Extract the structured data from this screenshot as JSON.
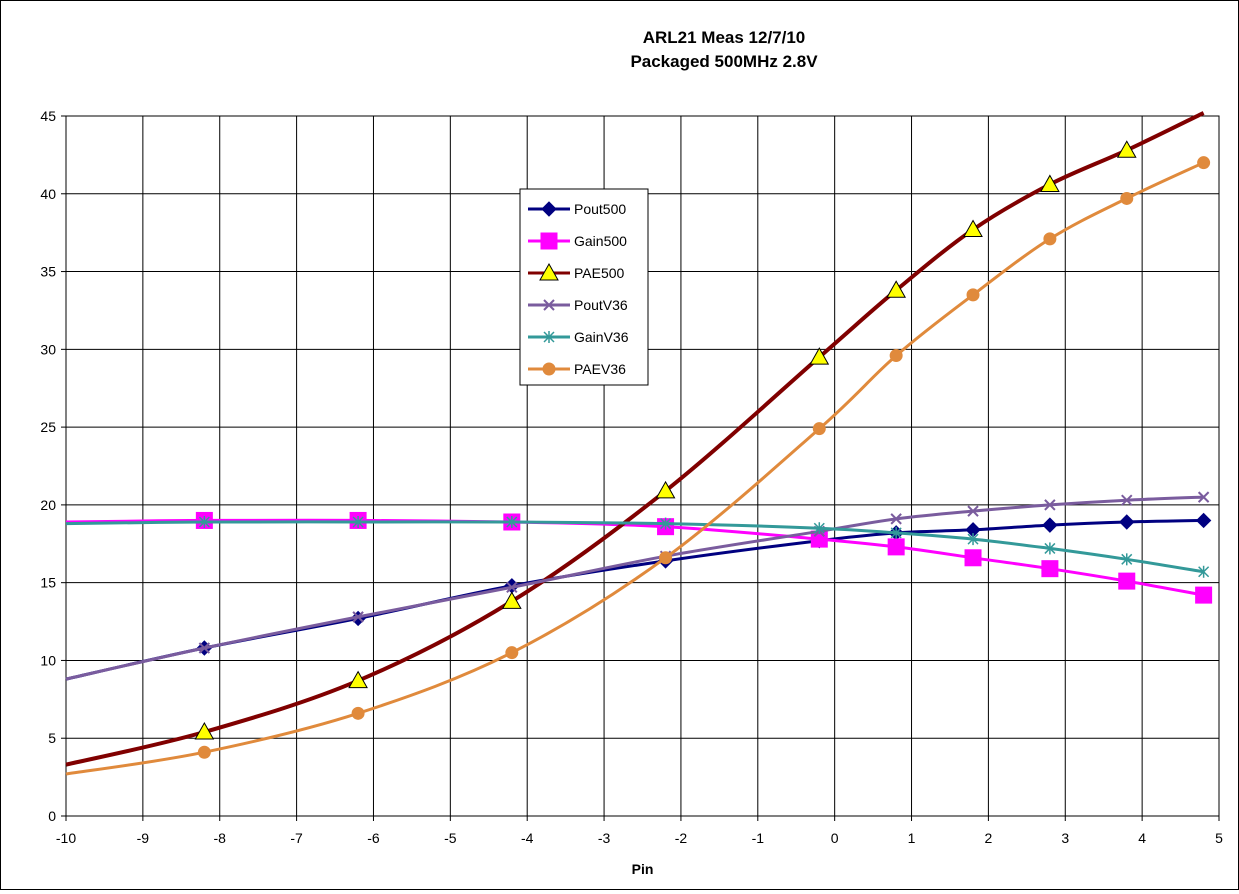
{
  "chart_data": {
    "type": "line",
    "title": "ARL21 Meas 12/7/10",
    "subtitle": "Packaged 500MHz 2.8V",
    "xlabel": "Pin",
    "ylabel": "",
    "xlim": [
      -10,
      5
    ],
    "ylim": [
      0,
      45
    ],
    "x_ticks": [
      "-10",
      "-9",
      "-8",
      "-7",
      "-6",
      "-5",
      "-4",
      "-3",
      "-2",
      "-1",
      "0",
      "1",
      "2",
      "3",
      "4",
      "5"
    ],
    "y_ticks": [
      "0",
      "5",
      "10",
      "15",
      "20",
      "25",
      "30",
      "35",
      "40",
      "45"
    ],
    "grid": true,
    "legend_position": "upper-center",
    "series": [
      {
        "name": "Pout500",
        "color": "#000080",
        "marker": "diamond",
        "x": [
          -10,
          -8.2,
          -6.2,
          -4.2,
          -2.2,
          -0.2,
          0.8,
          1.8,
          2.8,
          3.8,
          4.8
        ],
        "y": [
          8.8,
          10.8,
          12.7,
          14.8,
          16.4,
          17.7,
          18.2,
          18.4,
          18.7,
          18.9,
          19.0
        ]
      },
      {
        "name": "Gain500",
        "color": "#FF00FF",
        "marker": "square",
        "x": [
          -10,
          -8.2,
          -6.2,
          -4.2,
          -2.2,
          -0.2,
          0.8,
          1.8,
          2.8,
          3.8,
          4.8
        ],
        "y": [
          18.9,
          19.0,
          19.0,
          18.9,
          18.6,
          17.8,
          17.3,
          16.6,
          15.9,
          15.1,
          14.2
        ]
      },
      {
        "name": "PAE500",
        "color": "#800000",
        "marker": "triangle",
        "marker_fill": "#FFFF00",
        "x": [
          -10,
          -8.2,
          -6.2,
          -4.2,
          -2.2,
          -0.2,
          0.8,
          1.8,
          2.8,
          3.8,
          4.8
        ],
        "y": [
          3.3,
          5.4,
          8.7,
          13.8,
          20.9,
          29.5,
          33.8,
          37.7,
          40.6,
          42.8,
          45.2
        ]
      },
      {
        "name": "PoutV36",
        "color": "#7A5C9E",
        "marker": "x",
        "x": [
          -10,
          -8.2,
          -6.2,
          -4.2,
          -2.2,
          -0.2,
          0.8,
          1.8,
          2.8,
          3.8,
          4.8
        ],
        "y": [
          8.8,
          10.8,
          12.8,
          14.7,
          16.7,
          18.3,
          19.1,
          19.6,
          20.0,
          20.3,
          20.5
        ]
      },
      {
        "name": "GainV36",
        "color": "#339999",
        "marker": "asterisk",
        "x": [
          -10,
          -8.2,
          -6.2,
          -4.2,
          -2.2,
          -0.2,
          0.8,
          1.8,
          2.8,
          3.8,
          4.8
        ],
        "y": [
          18.8,
          18.9,
          18.9,
          18.9,
          18.8,
          18.5,
          18.2,
          17.8,
          17.2,
          16.5,
          15.7
        ]
      },
      {
        "name": "PAEV36",
        "color": "#E08A3C",
        "marker": "circle",
        "x": [
          -10,
          -8.2,
          -6.2,
          -4.2,
          -2.2,
          -0.2,
          0.8,
          1.8,
          2.8,
          3.8,
          4.8
        ],
        "y": [
          2.7,
          4.1,
          6.6,
          10.5,
          16.6,
          24.9,
          29.6,
          33.5,
          37.1,
          39.7,
          42.0
        ]
      }
    ]
  }
}
